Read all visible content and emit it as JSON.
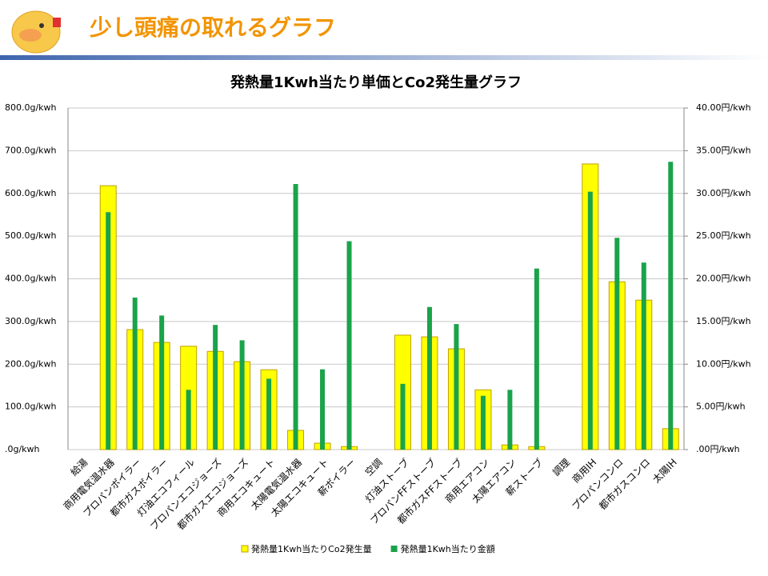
{
  "header": {
    "title": "少し頭痛の取れるグラフ"
  },
  "chart_data": {
    "type": "bar",
    "title": "発熱量1Kwh当たり単価とCo2発生量グラフ",
    "categories": [
      "給湯",
      "商用電気温水器",
      "プロパンボイラー",
      "都市ガスボイラー",
      "灯油エコフィール",
      "プロパンエコジョーズ",
      "都市ガスエコジョーズ",
      "商用エコキュート",
      "太陽電気温水器",
      "太陽エコキュート",
      "薪ボイラー",
      "空調",
      "灯油ストーブ",
      "プロパンFFストーブ",
      "都市ガスFFストーブ",
      "商用エアコン",
      "太陽エアコン",
      "薪ストーブ",
      "調理",
      "商用IH",
      "プロパンコンロ",
      "都市ガスコンロ",
      "太陽IH"
    ],
    "series": [
      {
        "name": "発熱量1Kwh当たりCo2発生量",
        "color": "#ffff00",
        "values": [
          null,
          618,
          281,
          251,
          242,
          230,
          206,
          187,
          45,
          15,
          7,
          null,
          268,
          264,
          236,
          140,
          11,
          7,
          null,
          669,
          393,
          350,
          49
        ]
      },
      {
        "name": "発熱量1Kwh当たり金額",
        "color": "#1aa34a",
        "axis": "y2",
        "values": [
          null,
          27.8,
          17.8,
          15.7,
          7.0,
          14.6,
          12.8,
          8.3,
          31.1,
          9.4,
          24.4,
          null,
          7.7,
          16.7,
          14.7,
          6.3,
          7.0,
          21.2,
          null,
          30.2,
          24.8,
          21.9,
          33.7
        ]
      }
    ],
    "ylim": [
      0,
      800
    ],
    "yticks": [
      {
        "value": 0,
        "label": ".0g/kwh"
      },
      {
        "value": 100,
        "label": "100.0g/kwh"
      },
      {
        "value": 200,
        "label": "200.0g/kwh"
      },
      {
        "value": 300,
        "label": "300.0g/kwh"
      },
      {
        "value": 400,
        "label": "400.0g/kwh"
      },
      {
        "value": 500,
        "label": "500.0g/kwh"
      },
      {
        "value": 600,
        "label": "600.0g/kwh"
      },
      {
        "value": 700,
        "label": "700.0g/kwh"
      },
      {
        "value": 800,
        "label": "800.0g/kwh"
      }
    ],
    "y2lim": [
      0,
      40
    ],
    "y2ticks": [
      {
        "value": 0,
        "label": ".00円/kwh"
      },
      {
        "value": 5,
        "label": "5.00円/kwh"
      },
      {
        "value": 10,
        "label": "10.00円/kwh"
      },
      {
        "value": 15,
        "label": "15.00円/kwh"
      },
      {
        "value": 20,
        "label": "20.00円/kwh"
      },
      {
        "value": 25,
        "label": "25.00円/kwh"
      },
      {
        "value": 30,
        "label": "30.00円/kwh"
      },
      {
        "value": 35,
        "label": "35.00円/kwh"
      },
      {
        "value": 40,
        "label": "40.00円/kwh"
      }
    ],
    "grid": true,
    "legend": "bottom"
  }
}
